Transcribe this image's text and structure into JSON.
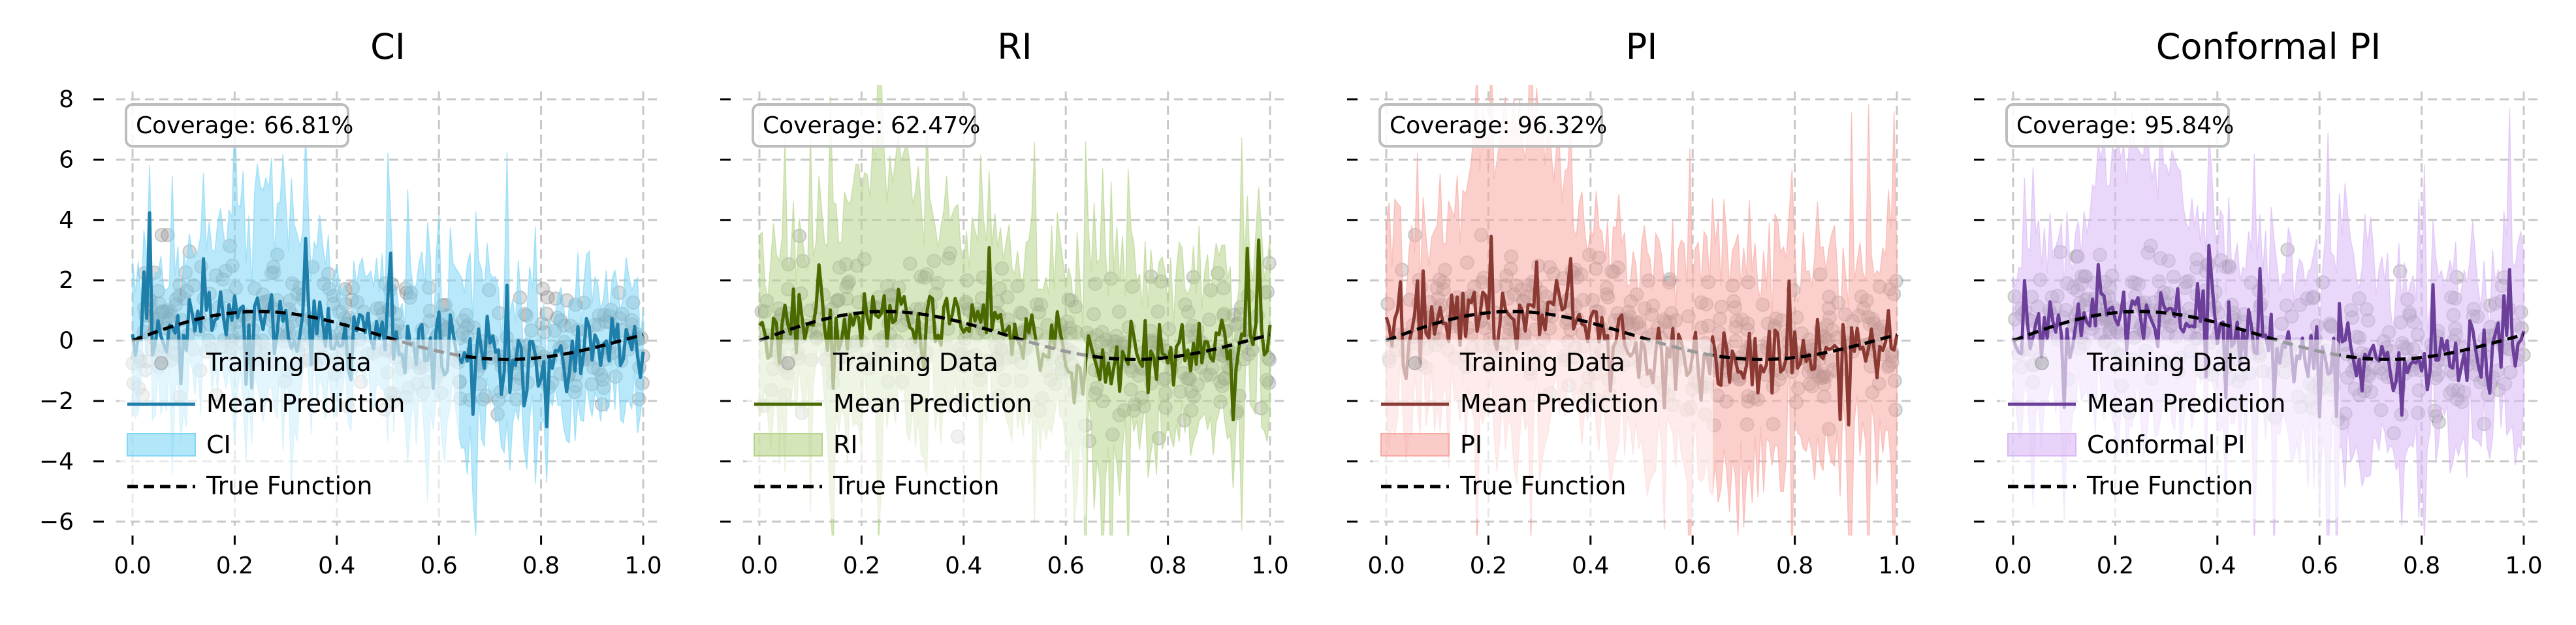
{
  "chart_data": [
    {
      "type": "line",
      "title": "CI",
      "interval_label": "CI",
      "coverage_text": "Coverage: 66.81%",
      "color": "#1f7fab",
      "band_color": "#7fd6f5",
      "legend": [
        "Training Data",
        "Mean Prediction",
        "CI",
        "True Function"
      ],
      "xlim": [
        0.0,
        1.0
      ],
      "ylim": [
        -6.5,
        8.5
      ],
      "x_ticks": [
        "0.0",
        "0.2",
        "0.4",
        "0.6",
        "0.8",
        "1.0"
      ],
      "y_ticks": [
        "8",
        "6",
        "4",
        "2",
        "0",
        "−2",
        "−4",
        "−6"
      ],
      "band_scale": 1.0,
      "seed": 11
    },
    {
      "type": "line",
      "title": "RI",
      "interval_label": "RI",
      "coverage_text": "Coverage: 62.47%",
      "color": "#4a6a00",
      "band_color": "#b6d48a",
      "legend": [
        "Training Data",
        "Mean Prediction",
        "RI",
        "True Function"
      ],
      "xlim": [
        0.0,
        1.0
      ],
      "ylim": [
        -6.5,
        8.5
      ],
      "x_ticks": [
        "0.0",
        "0.2",
        "0.4",
        "0.6",
        "0.8",
        "1.0"
      ],
      "y_ticks": [
        "8",
        "6",
        "4",
        "2",
        "0",
        "−2",
        "−4",
        "−6"
      ],
      "band_scale": 1.3,
      "seed": 23
    },
    {
      "type": "line",
      "title": "PI",
      "interval_label": "PI",
      "coverage_text": "Coverage: 96.32%",
      "color": "#8b3a33",
      "band_color": "#f7a9a2",
      "legend": [
        "Training Data",
        "Mean Prediction",
        "PI",
        "True Function"
      ],
      "xlim": [
        0.0,
        1.0
      ],
      "ylim": [
        -6.5,
        8.5
      ],
      "x_ticks": [
        "0.0",
        "0.2",
        "0.4",
        "0.6",
        "0.8",
        "1.0"
      ],
      "y_ticks": [
        "8",
        "6",
        "4",
        "2",
        "0",
        "−2",
        "−4",
        "−6"
      ],
      "band_scale": 1.6,
      "seed": 37
    },
    {
      "type": "line",
      "title": "Conformal PI",
      "interval_label": "Conformal PI",
      "coverage_text": "Coverage: 95.84%",
      "color": "#6b3f9a",
      "band_color": "#d9b8f5",
      "legend": [
        "Training Data",
        "Mean Prediction",
        "Conformal PI",
        "True Function"
      ],
      "xlim": [
        0.0,
        1.0
      ],
      "ylim": [
        -6.5,
        8.5
      ],
      "x_ticks": [
        "0.0",
        "0.2",
        "0.4",
        "0.6",
        "0.8",
        "1.0"
      ],
      "y_ticks": [
        "8",
        "6",
        "4",
        "2",
        "0",
        "−2",
        "−4",
        "−6"
      ],
      "band_scale": 1.4,
      "seed": 51
    }
  ]
}
